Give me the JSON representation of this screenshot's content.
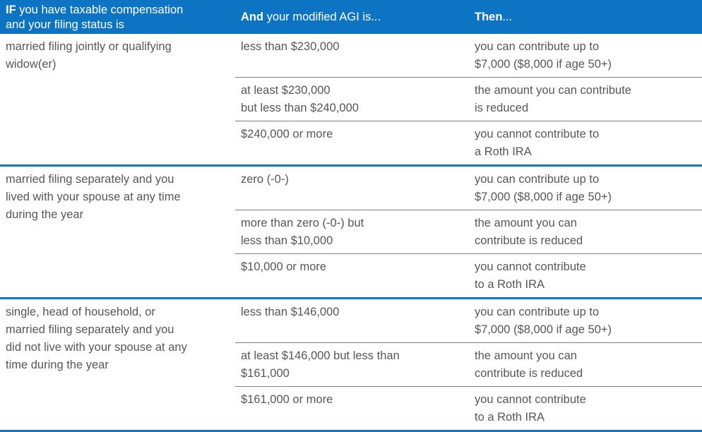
{
  "colors": {
    "header_background": "#0d74c4",
    "section_divider": "#0f77c8",
    "row_divider": "#7e8083",
    "body_text": "#56575a"
  },
  "table": {
    "header": {
      "col1": {
        "bold": "IF",
        "rest": [
          " you have taxable compensation",
          "and your filing status is"
        ]
      },
      "col2": {
        "bold": "And",
        "rest": " your modified AGI is..."
      },
      "col3": {
        "bold": "Then",
        "rest": "..."
      }
    },
    "sections": [
      {
        "status": [
          "married filing jointly or qualifying",
          "widow(er)"
        ],
        "rows": [
          {
            "agi": [
              "less than $230,000"
            ],
            "then": [
              "you can contribute up to",
              "$7,000 ($8,000 if age 50+)"
            ]
          },
          {
            "agi": [
              "at least $230,000",
              "but less than $240,000"
            ],
            "then": [
              "the amount you can contribute",
              "is reduced"
            ]
          },
          {
            "agi": [
              "$240,000 or more"
            ],
            "then": [
              "you cannot contribute to",
              "a Roth IRA"
            ]
          }
        ]
      },
      {
        "status": [
          "married filing separately and you",
          "lived with your spouse at any time",
          "during the year"
        ],
        "rows": [
          {
            "agi": [
              "zero (-0-)"
            ],
            "then": [
              "you can contribute up to",
              "$7,000 ($8,000 if age 50+)"
            ]
          },
          {
            "agi": [
              "more than zero (-0-) but",
              "less than $10,000"
            ],
            "then": [
              "the amount you can",
              "contribute is reduced"
            ]
          },
          {
            "agi": [
              "$10,000 or more"
            ],
            "then": [
              "you cannot contribute",
              "to a Roth IRA"
            ]
          }
        ]
      },
      {
        "status": [
          "single, head of household, or",
          "married filing separately and you",
          "did not live with your spouse at any",
          "time during the year"
        ],
        "rows": [
          {
            "agi": [
              "less than $146,000"
            ],
            "then": [
              "you can contribute up to",
              "$7,000 ($8,000 if age 50+)"
            ]
          },
          {
            "agi": [
              "at least $146,000 but less than",
              "$161,000"
            ],
            "then": [
              "the amount you can",
              "contribute is reduced"
            ]
          },
          {
            "agi": [
              "$161,000 or more"
            ],
            "then": [
              "you cannot contribute",
              "to a Roth IRA"
            ]
          }
        ]
      }
    ]
  }
}
